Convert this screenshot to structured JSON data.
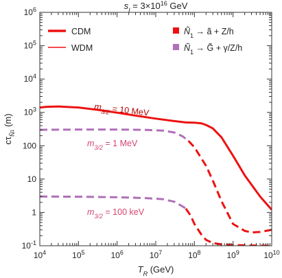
{
  "chart_data": {
    "type": "line",
    "title": "s_I = 3×10^16 GeV",
    "title_parts": {
      "italic": "s",
      "sub": "I",
      "middle": " = 3×10",
      "sup": "16",
      "tail": " GeV"
    },
    "xlabel": "T_R (GeV)",
    "xlabel_parts": {
      "italic": "T",
      "sub": "R",
      "tail": " (GeV)"
    },
    "ylabel": "cτ_Ñ1 (m)",
    "ylabel_parts": {
      "main": "cτ",
      "sub": "Ñ",
      "subsub": "1",
      "tail": " (m)"
    },
    "x_scale": "log",
    "y_scale": "log",
    "xlim": [
      10000,
      10000000000
    ],
    "ylim": [
      0.1,
      1000000
    ],
    "x_ticks": [
      10000,
      100000,
      1000000,
      10000000,
      100000000,
      1000000000,
      10000000000
    ],
    "x_tick_labels": [
      {
        "base": "10",
        "exp": "4"
      },
      {
        "base": "10",
        "exp": "5"
      },
      {
        "base": "10",
        "exp": "6"
      },
      {
        "base": "10",
        "exp": "7"
      },
      {
        "base": "10",
        "exp": "8"
      },
      {
        "base": "10",
        "exp": "9"
      },
      {
        "base": "10",
        "exp": "10"
      }
    ],
    "y_ticks": [
      0.1,
      1,
      10,
      100,
      1000,
      10000,
      100000,
      1000000
    ],
    "y_tick_labels": [
      {
        "base": "10",
        "exp": "-1"
      },
      {
        "base": "1",
        "exp": ""
      },
      {
        "base": "10",
        "exp": ""
      },
      {
        "base": "100",
        "exp": ""
      },
      {
        "base": "10",
        "exp": "3"
      },
      {
        "base": "10",
        "exp": "4"
      },
      {
        "base": "10",
        "exp": "5"
      },
      {
        "base": "10",
        "exp": "6"
      }
    ],
    "grid": false,
    "colors": {
      "axino": "#ee1111",
      "gravitino": "#b06fb8",
      "label_dark_red": "#b30000",
      "label_pink": "#d4446e"
    },
    "legend": {
      "placement": "top",
      "line_entries": [
        {
          "label": "CDM",
          "style": "thick"
        },
        {
          "label": "WDM",
          "style": "thin"
        }
      ],
      "marker_entries": [
        {
          "label": "Ñ1 → ã + Z/h",
          "parts": {
            "main": "Ñ",
            "sub": "1",
            "tail": " → ã + Z/h"
          },
          "color": "#ee1111"
        },
        {
          "label": "Ñ1 → G̃ + γ/Z/h",
          "parts": {
            "main": "Ñ",
            "sub": "1",
            "tail": " → G̃ + γ/Z/h"
          },
          "color": "#b06fb8"
        }
      ]
    },
    "series": [
      {
        "name": "m_3/2 = 10 MeV",
        "label_parts": {
          "italic": "m",
          "sub": "3/2",
          "tail": " = 10 MeV"
        },
        "label_color": "#b30000",
        "dm_type": "CDM",
        "segments": [
          {
            "channel": "axino",
            "color": "#ee1111",
            "dash": false,
            "x": [
              10000,
              15000,
              30000,
              100000,
              300000,
              1000000,
              3000000,
              10000000,
              30000000,
              60000000,
              100000000,
              150000000,
              200000000,
              300000000,
              500000000,
              1000000000,
              2000000000,
              5000000000,
              10000000000
            ],
            "y": [
              1400,
              1470,
              1500,
              1400,
              1200,
              980,
              800,
              650,
              550,
              500,
              490,
              470,
              420,
              330,
              180,
              50,
              13,
              3,
              1.2
            ]
          }
        ]
      },
      {
        "name": "m_3/2 = 1 MeV",
        "label_parts": {
          "italic": "m",
          "sub": "3/2",
          "tail": " = 1 MeV"
        },
        "label_color": "#d4446e",
        "dm_type": "WDM",
        "segments": [
          {
            "channel": "gravitino",
            "color": "#b06fb8",
            "dash": true,
            "x": [
              10000,
              100000,
              1000000,
              5000000,
              15000000,
              30000000,
              50000000,
              70000000
            ],
            "y": [
              300,
              305,
              305,
              300,
              285,
              250,
              190,
              140
            ]
          },
          {
            "channel": "axino",
            "color": "#ee1111",
            "dash": true,
            "x": [
              70000000,
              100000000,
              200000000,
              300000000,
              500000000,
              1000000000,
              2000000000,
              3000000000,
              5000000000,
              10000000000
            ],
            "y": [
              140,
              90,
              25,
              9,
              2.2,
              0.45,
              0.28,
              0.25,
              0.26,
              0.3
            ]
          }
        ]
      },
      {
        "name": "m_3/2 = 100 keV",
        "label_parts": {
          "italic": "m",
          "sub": "3/2",
          "tail": " = 100 keV"
        },
        "label_color": "#d4446e",
        "dm_type": "WDM",
        "segments": [
          {
            "channel": "gravitino",
            "color": "#b06fb8",
            "dash": true,
            "x": [
              10000,
              100000,
              1000000,
              5000000,
              15000000,
              30000000,
              50000000,
              60000000
            ],
            "y": [
              3,
              2.95,
              2.85,
              2.7,
              2.5,
              2.1,
              1.5,
              1.3
            ]
          },
          {
            "channel": "axino",
            "color": "#ee1111",
            "dash": true,
            "x": [
              60000000,
              80000000,
              100000000,
              150000000,
              200000000,
              300000000,
              500000000,
              1000000000,
              3000000000,
              10000000000
            ],
            "y": [
              1.3,
              0.8,
              0.45,
              0.22,
              0.15,
              0.12,
              0.11,
              0.105,
              0.102,
              0.1
            ]
          }
        ]
      }
    ]
  }
}
